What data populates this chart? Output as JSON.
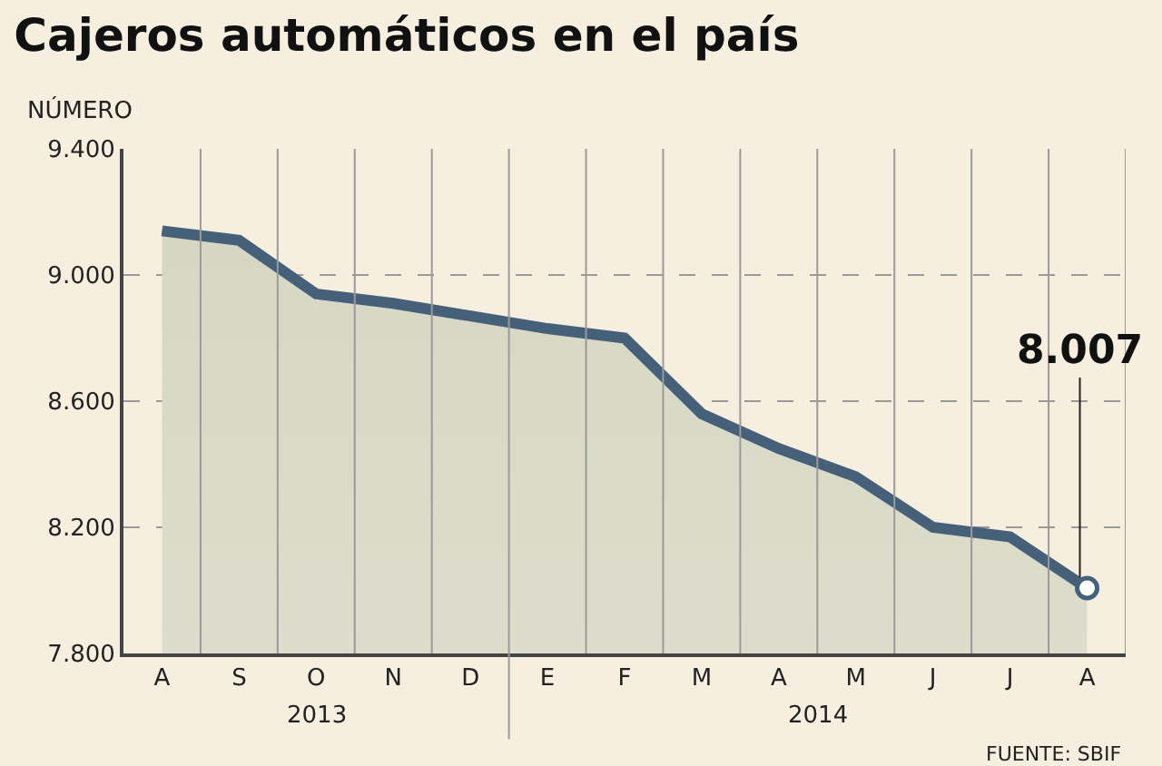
{
  "chart_data": {
    "type": "area",
    "title": "Cajeros automáticos en el país",
    "ylabel": "NÚMERO",
    "categories": [
      "A",
      "S",
      "O",
      "N",
      "D",
      "E",
      "F",
      "M",
      "A",
      "M",
      "J",
      "J",
      "A"
    ],
    "series": [
      {
        "color": "#46607a",
        "values": [
          9140,
          9110,
          8940,
          8910,
          8870,
          8830,
          8800,
          8560,
          8450,
          8360,
          8200,
          8170,
          8007
        ],
        "value_labels": [
          null,
          null,
          null,
          null,
          null,
          null,
          null,
          null,
          null,
          null,
          null,
          null,
          "8.007"
        ]
      }
    ],
    "ylim": [
      7800,
      9400
    ],
    "yticks": [
      {
        "value": 7800,
        "label": "7.800"
      },
      {
        "value": 8200,
        "label": "8.200"
      },
      {
        "value": 8600,
        "label": "8.600"
      },
      {
        "value": 9000,
        "label": "9.000"
      },
      {
        "value": 9400,
        "label": "9.400"
      }
    ],
    "annotations": [
      "2013",
      "2014",
      "FUENTE: SBIF"
    ],
    "grid": true,
    "marker": "none",
    "line_style": "solid"
  }
}
